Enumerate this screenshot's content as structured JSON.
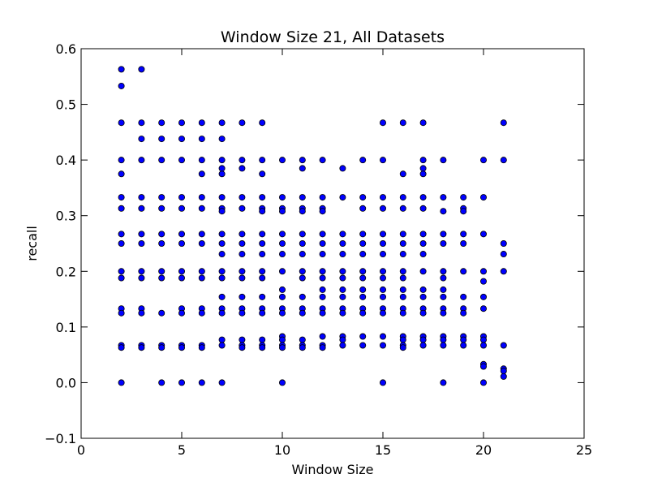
{
  "chart_data": {
    "type": "scatter",
    "title": "Window Size 21, All Datasets",
    "xlabel": "Window Size",
    "ylabel": "recall",
    "xlim": [
      0,
      25
    ],
    "ylim": [
      -0.1,
      0.6
    ],
    "xticks": [
      0,
      5,
      10,
      15,
      20,
      25
    ],
    "xtick_labels": [
      "0",
      "5",
      "10",
      "15",
      "20",
      "25"
    ],
    "yticks": [
      -0.1,
      0.0,
      0.1,
      0.2,
      0.3,
      0.4,
      0.5,
      0.6
    ],
    "ytick_labels": [
      "−0.1",
      "0.0",
      "0.1",
      "0.2",
      "0.3",
      "0.4",
      "0.5",
      "0.6"
    ],
    "grid": false,
    "marker_color": "#0000ff",
    "marker_edge_color": "#000000",
    "points_by_x": [
      {
        "x": 2,
        "y": [
          0.563,
          0.533,
          0.467,
          0.4,
          0.375,
          0.333,
          0.313,
          0.267,
          0.25,
          0.2,
          0.188,
          0.133,
          0.125,
          0.067,
          0.063,
          0.0
        ]
      },
      {
        "x": 3,
        "y": [
          0.563,
          0.467,
          0.438,
          0.4,
          0.333,
          0.313,
          0.267,
          0.25,
          0.2,
          0.188,
          0.133,
          0.125,
          0.067,
          0.063
        ]
      },
      {
        "x": 4,
        "y": [
          0.467,
          0.438,
          0.4,
          0.333,
          0.313,
          0.267,
          0.25,
          0.2,
          0.188,
          0.125,
          0.067,
          0.063,
          0.0
        ]
      },
      {
        "x": 5,
        "y": [
          0.467,
          0.438,
          0.4,
          0.333,
          0.313,
          0.267,
          0.25,
          0.2,
          0.188,
          0.133,
          0.125,
          0.067,
          0.063,
          0.0
        ]
      },
      {
        "x": 6,
        "y": [
          0.467,
          0.438,
          0.4,
          0.375,
          0.333,
          0.313,
          0.267,
          0.25,
          0.2,
          0.188,
          0.133,
          0.125,
          0.067,
          0.063,
          0.0
        ]
      },
      {
        "x": 7,
        "y": [
          0.467,
          0.438,
          0.4,
          0.385,
          0.375,
          0.333,
          0.313,
          0.308,
          0.267,
          0.25,
          0.231,
          0.2,
          0.188,
          0.154,
          0.133,
          0.125,
          0.077,
          0.067,
          0.0
        ]
      },
      {
        "x": 8,
        "y": [
          0.467,
          0.4,
          0.385,
          0.333,
          0.313,
          0.267,
          0.25,
          0.231,
          0.2,
          0.188,
          0.154,
          0.133,
          0.125,
          0.077,
          0.067,
          0.063
        ]
      },
      {
        "x": 9,
        "y": [
          0.467,
          0.4,
          0.375,
          0.333,
          0.313,
          0.308,
          0.267,
          0.25,
          0.231,
          0.2,
          0.188,
          0.154,
          0.133,
          0.125,
          0.077,
          0.067,
          0.063
        ]
      },
      {
        "x": 10,
        "y": [
          0.4,
          0.333,
          0.313,
          0.308,
          0.267,
          0.25,
          0.231,
          0.2,
          0.167,
          0.154,
          0.133,
          0.125,
          0.083,
          0.077,
          0.067,
          0.063,
          0.0
        ]
      },
      {
        "x": 11,
        "y": [
          0.4,
          0.385,
          0.333,
          0.313,
          0.308,
          0.267,
          0.25,
          0.231,
          0.2,
          0.188,
          0.154,
          0.133,
          0.125,
          0.077,
          0.067,
          0.063
        ]
      },
      {
        "x": 12,
        "y": [
          0.4,
          0.333,
          0.313,
          0.308,
          0.267,
          0.25,
          0.231,
          0.2,
          0.188,
          0.167,
          0.154,
          0.133,
          0.125,
          0.083,
          0.067,
          0.063
        ]
      },
      {
        "x": 13,
        "y": [
          0.385,
          0.333,
          0.267,
          0.25,
          0.231,
          0.2,
          0.188,
          0.167,
          0.154,
          0.133,
          0.125,
          0.083,
          0.077,
          0.067
        ]
      },
      {
        "x": 14,
        "y": [
          0.4,
          0.333,
          0.313,
          0.267,
          0.25,
          0.231,
          0.2,
          0.188,
          0.167,
          0.154,
          0.133,
          0.125,
          0.083,
          0.067
        ]
      },
      {
        "x": 15,
        "y": [
          0.467,
          0.4,
          0.333,
          0.313,
          0.267,
          0.25,
          0.231,
          0.2,
          0.188,
          0.167,
          0.154,
          0.133,
          0.125,
          0.083,
          0.067,
          0.0
        ]
      },
      {
        "x": 16,
        "y": [
          0.467,
          0.375,
          0.333,
          0.313,
          0.267,
          0.25,
          0.231,
          0.2,
          0.188,
          0.167,
          0.154,
          0.133,
          0.125,
          0.083,
          0.077,
          0.067,
          0.063
        ]
      },
      {
        "x": 17,
        "y": [
          0.467,
          0.4,
          0.385,
          0.375,
          0.333,
          0.313,
          0.267,
          0.25,
          0.231,
          0.2,
          0.167,
          0.154,
          0.133,
          0.125,
          0.083,
          0.077,
          0.067
        ]
      },
      {
        "x": 18,
        "y": [
          0.4,
          0.333,
          0.308,
          0.267,
          0.25,
          0.2,
          0.188,
          0.167,
          0.154,
          0.133,
          0.125,
          0.083,
          0.077,
          0.067,
          0.0
        ]
      },
      {
        "x": 19,
        "y": [
          0.333,
          0.313,
          0.308,
          0.267,
          0.25,
          0.2,
          0.154,
          0.133,
          0.125,
          0.083,
          0.077,
          0.067
        ]
      },
      {
        "x": 20,
        "y": [
          0.4,
          0.333,
          0.267,
          0.2,
          0.182,
          0.154,
          0.133,
          0.083,
          0.077,
          0.067,
          0.033,
          0.029,
          0.0
        ]
      },
      {
        "x": 21,
        "y": [
          0.467,
          0.4,
          0.25,
          0.231,
          0.2,
          0.067,
          0.025,
          0.021,
          0.011
        ]
      }
    ]
  }
}
